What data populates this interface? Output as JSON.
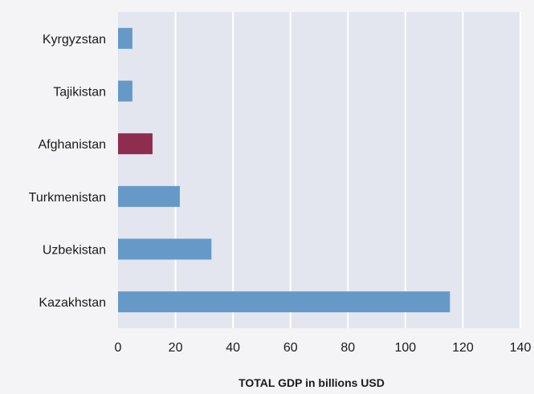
{
  "chart_data": {
    "type": "bar",
    "orientation": "horizontal",
    "categories": [
      "Kyrgyzstan",
      "Tajikistan",
      "Afghanistan",
      "Turkmenistan",
      "Uzbekistan",
      "Kazakhstan"
    ],
    "values": [
      5,
      5,
      12,
      21.5,
      32.5,
      115.5
    ],
    "bar_colors": [
      "#6699c8",
      "#6699c8",
      "#8e2d4f",
      "#6699c8",
      "#6699c8",
      "#6699c8"
    ],
    "xlabel": "TOTAL GDP in billions USD",
    "ylabel": "",
    "xlim": [
      0,
      140
    ],
    "xticks": [
      "0",
      "20",
      "40",
      "60",
      "80",
      "100",
      "120",
      "140"
    ],
    "grid": true,
    "plot_background": "#e3e6ee",
    "grid_color": "#ffffff"
  }
}
